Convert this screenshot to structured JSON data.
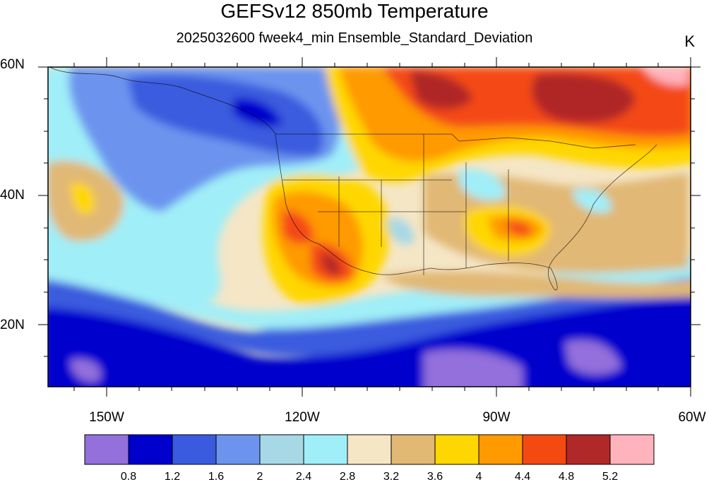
{
  "title": "GEFSv12 850mb Temperature",
  "subtitle": "2025032600 fweek4_min Ensemble_Standard_Deviation",
  "units": "K",
  "lat_labels": [
    "60N",
    "40N",
    "20N"
  ],
  "lon_labels": [
    "150W",
    "120W",
    "90W",
    "60W"
  ],
  "colorbar": {
    "colors": [
      "#9370DB",
      "#0000CD",
      "#3A5BDE",
      "#6C94EF",
      "#A7D8E6",
      "#A0EEF8",
      "#F5E6C6",
      "#E1B874",
      "#FFD700",
      "#FF9A00",
      "#F44A12",
      "#B02828",
      "#FFB3BC"
    ],
    "labels": [
      "0.8",
      "1.2",
      "1.6",
      "2",
      "2.4",
      "2.8",
      "3.2",
      "3.6",
      "4",
      "4.4",
      "4.8",
      "5.2"
    ]
  }
}
